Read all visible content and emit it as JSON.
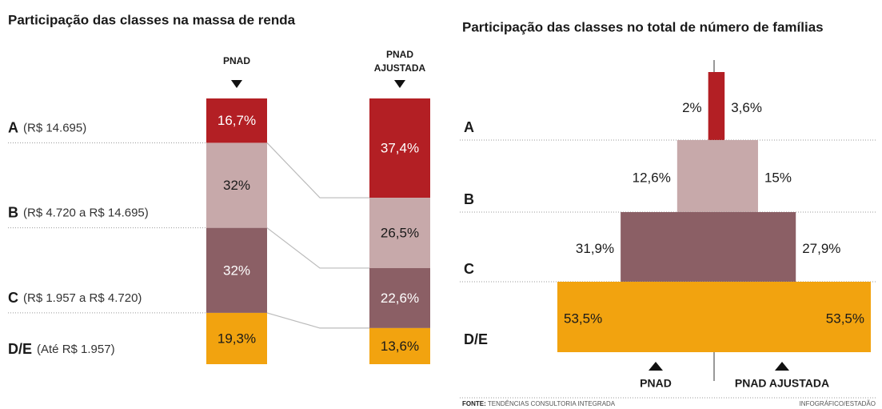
{
  "chart_data": [
    {
      "type": "stacked-bar",
      "title": "Participação das classes na massa de renda",
      "categories": [
        "A",
        "B",
        "C",
        "D/E"
      ],
      "category_notes": [
        "(R$ 14.695)",
        "(R$ 4.720 a R$ 14.695)",
        "(R$ 1.957 a R$ 4.720)",
        "(Até R$ 1.957)"
      ],
      "colors": [
        "#b31f24",
        "#c7a9aa",
        "#8b5f65",
        "#f2a30f"
      ],
      "series": [
        {
          "name": "PNAD",
          "values": [
            16.7,
            32,
            32,
            19.3
          ],
          "value_labels": [
            "16,7%",
            "32%",
            "32%",
            "19,3%"
          ]
        },
        {
          "name": "PNAD AJUSTADA",
          "values": [
            37.4,
            26.5,
            22.6,
            13.6
          ],
          "value_labels": [
            "37,4%",
            "26,5%",
            "22,6%",
            "13,6%"
          ]
        }
      ]
    },
    {
      "type": "pyramid",
      "title": "Participação das classes no total de número de famílias",
      "categories": [
        "A",
        "B",
        "C",
        "D/E"
      ],
      "colors": [
        "#b31f24",
        "#c7a9aa",
        "#8b5f65",
        "#f2a30f"
      ],
      "series": [
        {
          "name": "PNAD",
          "values": [
            2,
            12.6,
            31.9,
            53.5
          ],
          "value_labels": [
            "2%",
            "12,6%",
            "31,9%",
            "53,5%"
          ]
        },
        {
          "name": "PNAD AJUSTADA",
          "values": [
            3.6,
            15,
            27.9,
            53.5
          ],
          "value_labels": [
            "3,6%",
            "15%",
            "27,9%",
            "53,5%"
          ]
        }
      ]
    }
  ],
  "footer": {
    "source_label": "FONTE:",
    "source": "TENDÊNCIAS CONSULTORIA INTEGRADA",
    "credit": "INFOGRÁFICO/ESTADÃO"
  }
}
